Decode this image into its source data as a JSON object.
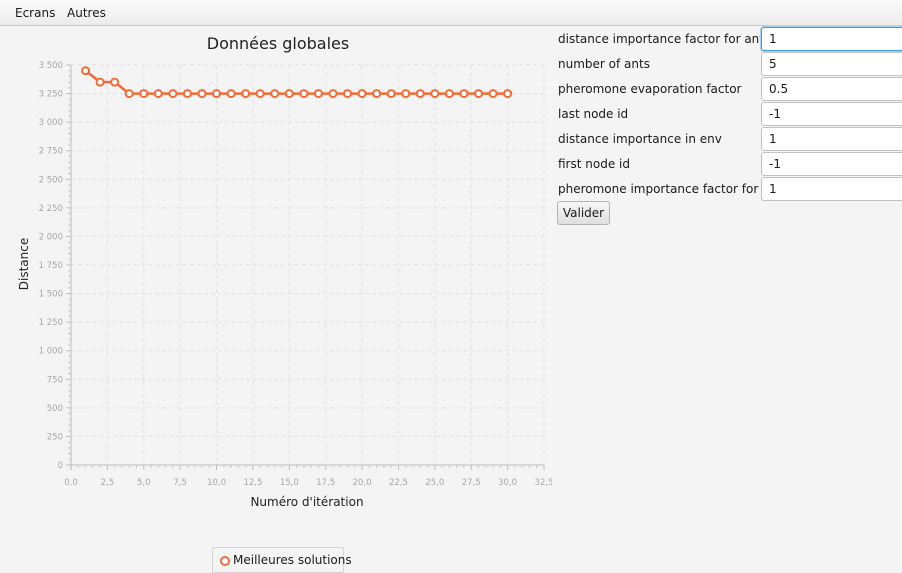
{
  "menu": {
    "items": [
      {
        "label": "Ecrans"
      },
      {
        "label": "Autres"
      }
    ]
  },
  "chart": {
    "legend_label": "Meilleures solutions"
  },
  "chart_data": {
    "type": "line",
    "title": "Données globales",
    "xlabel": "Numéro d'itération",
    "ylabel": "Distance",
    "xlim": [
      0,
      32.5
    ],
    "ylim": [
      0,
      3500
    ],
    "x_ticks": [
      "0,0",
      "2,5",
      "5,0",
      "7,5",
      "10,0",
      "12,5",
      "15,0",
      "17,5",
      "20,0",
      "22,5",
      "25,0",
      "27,5",
      "30,0",
      "32,5"
    ],
    "y_ticks": [
      "0",
      "250",
      "500",
      "750",
      "1 000",
      "1 250",
      "1 500",
      "1 750",
      "2 000",
      "2 250",
      "2 500",
      "2 750",
      "3 000",
      "3 250",
      "3 500"
    ],
    "grid": true,
    "legend_position": "bottom",
    "series": [
      {
        "name": "Meilleures solutions",
        "color": "#f26b36",
        "x": [
          1,
          2,
          3,
          4,
          5,
          6,
          7,
          8,
          9,
          10,
          11,
          12,
          13,
          14,
          15,
          16,
          17,
          18,
          19,
          20,
          21,
          22,
          23,
          24,
          25,
          26,
          27,
          28,
          29,
          30
        ],
        "values": [
          3450,
          3350,
          3350,
          3250,
          3250,
          3250,
          3250,
          3250,
          3250,
          3250,
          3250,
          3250,
          3250,
          3250,
          3250,
          3250,
          3250,
          3250,
          3250,
          3250,
          3250,
          3250,
          3250,
          3250,
          3250,
          3250,
          3250,
          3250,
          3250,
          3250
        ]
      }
    ]
  },
  "form": {
    "fields": [
      {
        "label": "distance importance factor for ants",
        "value": "1"
      },
      {
        "label": "number of ants",
        "value": "5"
      },
      {
        "label": "pheromone evaporation factor",
        "value": "0.5"
      },
      {
        "label": "last node id",
        "value": "-1"
      },
      {
        "label": "distance importance in env",
        "value": "1"
      },
      {
        "label": "first node id",
        "value": "-1"
      },
      {
        "label": "pheromone importance factor for ants",
        "value": "1"
      }
    ],
    "submit_label": "Valider"
  }
}
